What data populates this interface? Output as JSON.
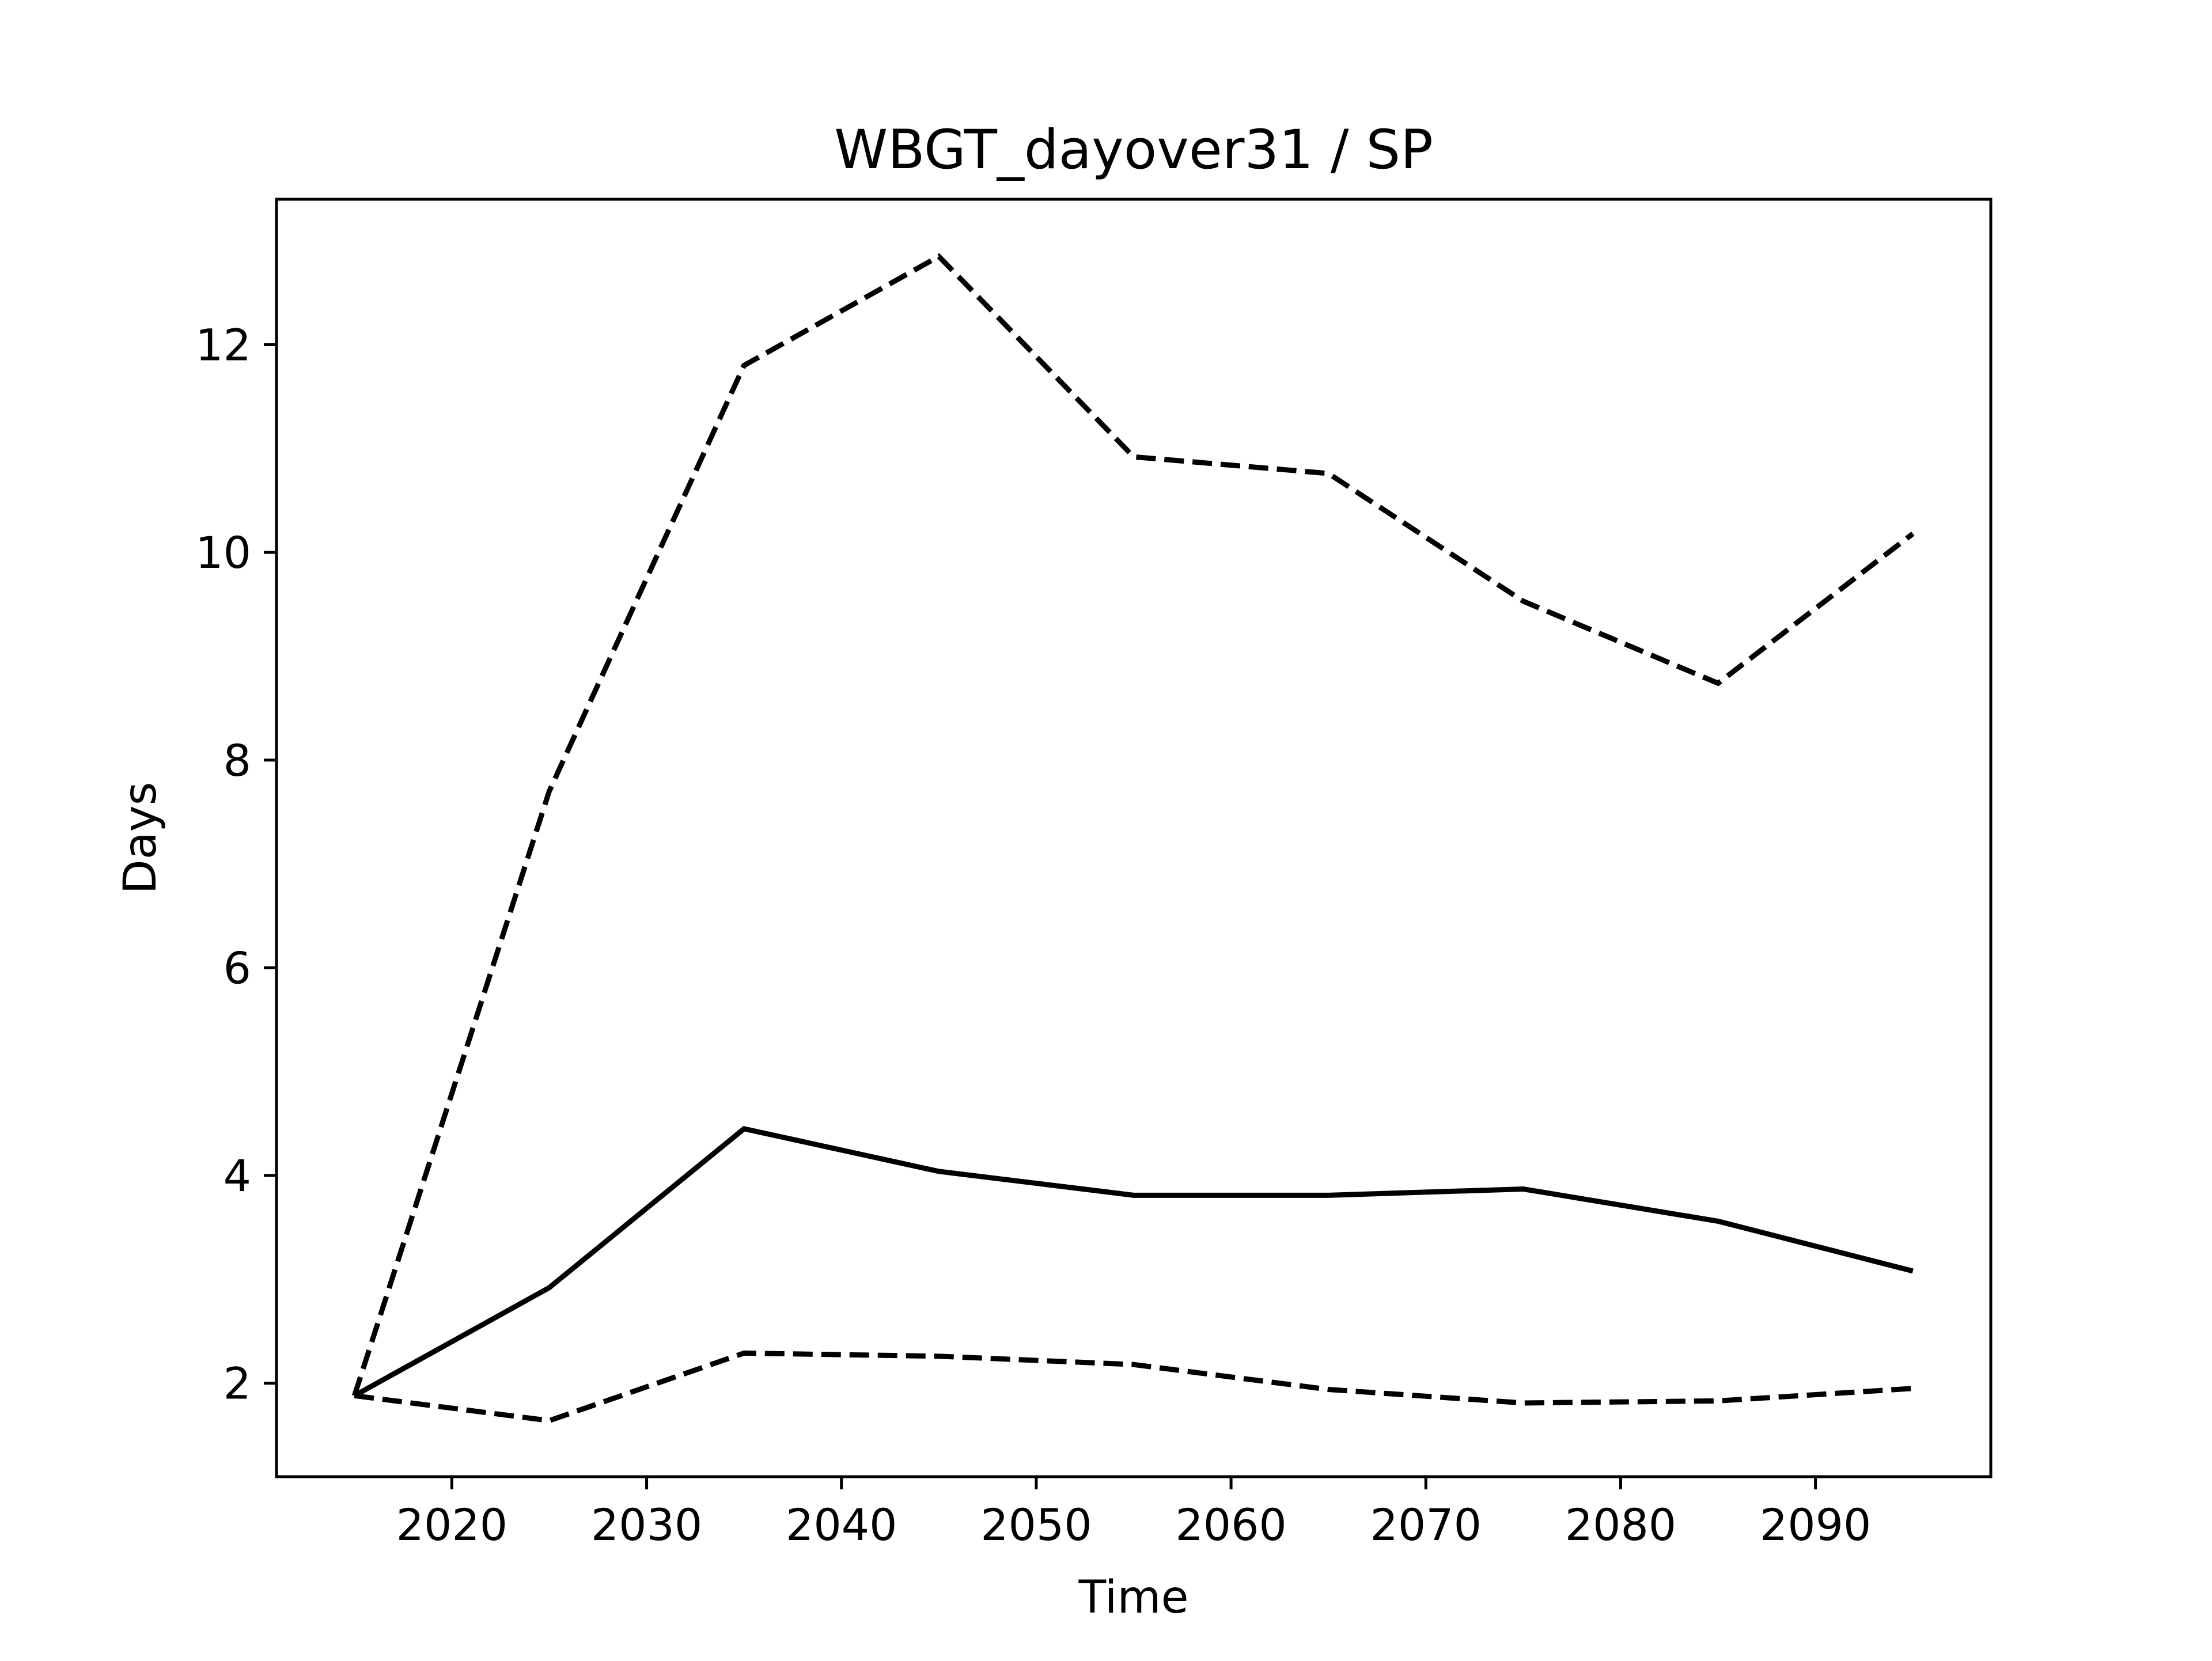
{
  "chart_data": {
    "type": "line",
    "title": "WBGT_dayover31 / SP",
    "xlabel": "Time",
    "ylabel": "Days",
    "xlim": [
      2011,
      2099
    ],
    "ylim": [
      1.1,
      13.4
    ],
    "xticks": [
      2020,
      2030,
      2040,
      2050,
      2060,
      2070,
      2080,
      2090
    ],
    "yticks": [
      2,
      4,
      6,
      8,
      10,
      12
    ],
    "grid": false,
    "legend": "none",
    "line_color": "#000000",
    "x": [
      2015,
      2025,
      2035,
      2045,
      2055,
      2065,
      2075,
      2085,
      2095
    ],
    "series": [
      {
        "style": "dashed",
        "values": [
          1.88,
          7.7,
          11.8,
          12.85,
          10.92,
          10.76,
          9.53,
          8.74,
          10.18
        ]
      },
      {
        "style": "solid",
        "values": [
          1.88,
          2.92,
          4.45,
          4.04,
          3.81,
          3.81,
          3.87,
          3.56,
          3.08
        ]
      },
      {
        "style": "dashed",
        "values": [
          1.88,
          1.64,
          2.29,
          2.26,
          2.18,
          1.94,
          1.81,
          1.83,
          1.95
        ]
      }
    ]
  }
}
